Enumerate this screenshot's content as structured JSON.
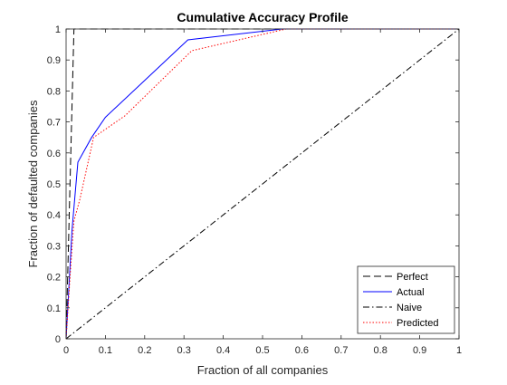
{
  "chart_data": {
    "type": "line",
    "title": "Cumulative Accuracy Profile",
    "xlabel": "Fraction of all companies",
    "ylabel": "Fraction of defaulted companies",
    "xlim": [
      0,
      1
    ],
    "ylim": [
      0,
      1
    ],
    "xticks": [
      "0",
      "0.1",
      "0.2",
      "0.3",
      "0.4",
      "0.5",
      "0.6",
      "0.7",
      "0.8",
      "0.9",
      "1"
    ],
    "yticks": [
      "0",
      "0.1",
      "0.2",
      "0.3",
      "0.4",
      "0.5",
      "0.6",
      "0.7",
      "0.8",
      "0.9",
      "1"
    ],
    "grid": false,
    "legend_position": "bottom-right",
    "series": [
      {
        "name": "Perfect",
        "color": "#000000",
        "style": "dashed",
        "x": [
          0,
          0.02,
          1
        ],
        "y": [
          0,
          1,
          1
        ]
      },
      {
        "name": "Actual",
        "color": "#0000ff",
        "style": "solid",
        "x": [
          0,
          0.015,
          0.03,
          0.065,
          0.1,
          0.31,
          0.55,
          1
        ],
        "y": [
          0,
          0.35,
          0.57,
          0.65,
          0.715,
          0.965,
          1,
          1
        ]
      },
      {
        "name": "Naive",
        "color": "#000000",
        "style": "dashdot",
        "x": [
          0,
          1
        ],
        "y": [
          0,
          1
        ]
      },
      {
        "name": "Predicted",
        "color": "#ff0000",
        "style": "dotted",
        "x": [
          0,
          0.01,
          0.02,
          0.035,
          0.07,
          0.15,
          0.32,
          0.56,
          1
        ],
        "y": [
          0,
          0.2,
          0.38,
          0.45,
          0.65,
          0.72,
          0.93,
          1,
          1
        ]
      }
    ]
  }
}
